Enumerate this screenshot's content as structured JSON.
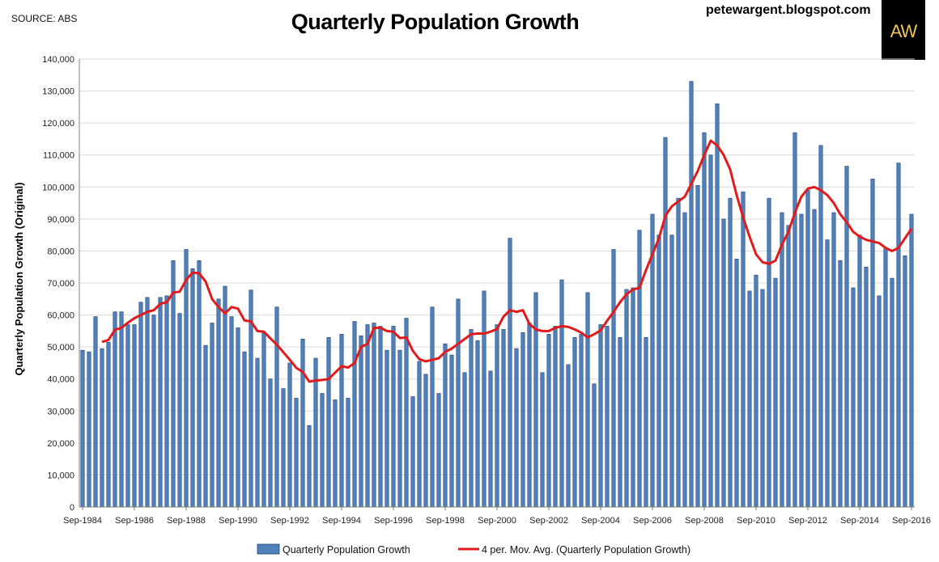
{
  "source_text": "SOURCE: ABS",
  "blog_text": "petewargent.blogspot.com",
  "logo_text": "AW",
  "colors": {
    "bar_fill": "#4f81bd",
    "bar_stroke": "#1f3f6e",
    "line": "#e11b1b",
    "grid": "#d9d9d9",
    "logo_bg": "#000000",
    "logo_text": "#f0c45a"
  },
  "chart_data": {
    "type": "bar",
    "title": "Quarterly Population Growth",
    "ylabel": "Quarterly Population Growth (Original)",
    "xlabel": "",
    "ylim": [
      0,
      140000
    ],
    "y_ticks": [
      "0",
      "10,000",
      "20,000",
      "30,000",
      "40,000",
      "50,000",
      "60,000",
      "70,000",
      "80,000",
      "90,000",
      "100,000",
      "110,000",
      "120,000",
      "130,000",
      "140,000"
    ],
    "x_tick_labels": [
      "Sep-1984",
      "Sep-1986",
      "Sep-1988",
      "Sep-1990",
      "Sep-1992",
      "Sep-1994",
      "Sep-1996",
      "Sep-1998",
      "Sep-2000",
      "Sep-2002",
      "Sep-2004",
      "Sep-2006",
      "Sep-2008",
      "Sep-2010",
      "Sep-2012",
      "Sep-2014",
      "Sep-2016"
    ],
    "x_start": "Sep-1984",
    "x_end": "Sep-2016",
    "grid": true,
    "legend_position": "bottom",
    "series": [
      {
        "name": "Quarterly Population Growth",
        "type": "bar",
        "values": [
          49000,
          48500,
          59500,
          49500,
          51500,
          61000,
          61000,
          57000,
          57000,
          64000,
          65500,
          60000,
          65500,
          66000,
          77000,
          60500,
          80500,
          74500,
          77000,
          50500,
          57500,
          65000,
          69000,
          59500,
          56000,
          48500,
          67800,
          46500,
          54500,
          40000,
          62500,
          37000,
          45000,
          34000,
          52500,
          25500,
          46500,
          35500,
          53000,
          33500,
          54000,
          34000,
          58000,
          53500,
          57000,
          57500,
          56500,
          49000,
          56500,
          49000,
          59000,
          34500,
          45500,
          41500,
          62500,
          35500,
          51000,
          47500,
          65000,
          42000,
          55500,
          52000,
          67500,
          42500,
          57000,
          55500,
          84000,
          49500,
          54500,
          57500,
          67000,
          42000,
          54000,
          56500,
          71000,
          44500,
          53000,
          54000,
          67000,
          38500,
          57000,
          56500,
          80500,
          53000,
          68000,
          68500,
          86500,
          53000,
          91500,
          85000,
          115500,
          85000,
          96500,
          92000,
          133000,
          100500,
          117000,
          110000,
          126000,
          90000,
          96500,
          77500,
          98500,
          67500,
          72500,
          68000,
          96500,
          71500,
          92000,
          88000,
          117000,
          91500,
          99000,
          93000,
          113000,
          83500,
          92000,
          77000,
          106500,
          68500,
          85000,
          75000,
          102500,
          66000,
          81000,
          71500,
          107500,
          78500,
          91500
        ]
      },
      {
        "name": "4 per. Mov. Avg. (Quarterly Population Growth)",
        "type": "line",
        "values": [
          null,
          null,
          null,
          51600,
          52200,
          55400,
          56000,
          57600,
          59000,
          60000,
          61000,
          61500,
          63500,
          64000,
          67000,
          67300,
          71000,
          73300,
          73000,
          70500,
          65000,
          62500,
          60500,
          62500,
          62000,
          58300,
          58000,
          55000,
          54800,
          52700,
          50700,
          48400,
          46000,
          43500,
          42200,
          39200,
          39500,
          39700,
          40000,
          42000,
          44000,
          43600,
          45000,
          50000,
          51000,
          56000,
          56000,
          55000,
          54800,
          52800,
          53000,
          48800,
          46200,
          45500,
          46000,
          46500,
          48500,
          49500,
          51000,
          52500,
          54000,
          54200,
          54200,
          54800,
          55600,
          59500,
          61500,
          61000,
          61500,
          57200,
          55500,
          55000,
          55000,
          56000,
          56500,
          56300,
          55500,
          54500,
          53000,
          54000,
          55200,
          58200,
          61000,
          64000,
          66500,
          68000,
          68500,
          74000,
          79000,
          84000,
          91000,
          94000,
          95500,
          97000,
          101000,
          105000,
          110000,
          114500,
          113000,
          110000,
          105500,
          97500,
          90500,
          84500,
          79000,
          76500,
          76000,
          77000,
          82000,
          86000,
          92000,
          97000,
          99500,
          100000,
          99000,
          97500,
          95000,
          91500,
          89000,
          86000,
          84500,
          83500,
          83000,
          82500,
          81000,
          80000,
          81000,
          84000,
          87000
        ]
      }
    ]
  }
}
